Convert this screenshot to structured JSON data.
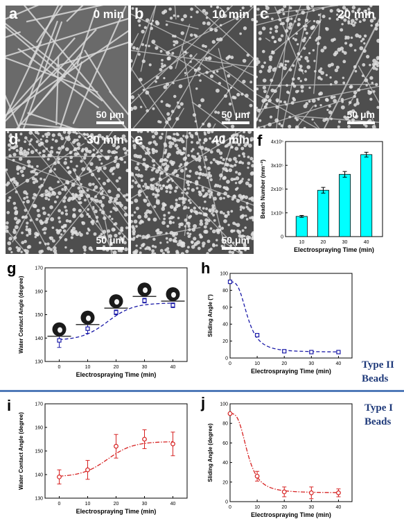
{
  "sem_panels": [
    {
      "letter": "a",
      "time": "0 min",
      "scale": "50 μm"
    },
    {
      "letter": "b",
      "time": "10 min",
      "scale": "50 μm"
    },
    {
      "letter": "c",
      "time": "20 min",
      "scale": "50 μm"
    },
    {
      "letter": "d",
      "time": "30 min",
      "scale": "50 μm"
    },
    {
      "letter": "e",
      "time": "40 min",
      "scale": "50 μm"
    }
  ],
  "panel_letters": {
    "f": "f",
    "g": "g",
    "h": "h",
    "i": "i",
    "j": "j"
  },
  "type_labels": {
    "type2_line1": "Type II",
    "type2_line2": "Beads",
    "type1_line1": "Type I",
    "type1_line2": "Beads"
  },
  "colors": {
    "bar": "#00ffff",
    "blue": "#1a1aa8",
    "red": "#d62020",
    "separator": "#4f79b8"
  },
  "chart_data": [
    {
      "id": "f",
      "type": "bar",
      "categories": [
        "10",
        "20",
        "30",
        "40"
      ],
      "values": [
        85000,
        195000,
        262000,
        345000
      ],
      "errors": [
        4000,
        12000,
        12000,
        10000
      ],
      "ylim": [
        0,
        400000
      ],
      "yticks": [
        {
          "v": 0,
          "label": "0"
        },
        {
          "v": 100000,
          "label": "1x10⁵"
        },
        {
          "v": 200000,
          "label": "2x10⁵"
        },
        {
          "v": 300000,
          "label": "3x10⁵"
        },
        {
          "v": 400000,
          "label": "4x10⁵"
        }
      ],
      "xlabel": "Electrospraying Time (min)",
      "ylabel": "Beads Number (mm⁻²)"
    },
    {
      "id": "g",
      "type": "scatter",
      "x": [
        0,
        10,
        20,
        30,
        40
      ],
      "y": [
        139,
        144,
        151,
        156,
        154
      ],
      "errors": [
        3,
        2,
        1,
        1,
        1
      ],
      "xlim": [
        -5,
        45
      ],
      "ylim": [
        130,
        170
      ],
      "xticks": [
        0,
        10,
        20,
        30,
        40
      ],
      "yticks": [
        130,
        140,
        150,
        160,
        170
      ],
      "xlabel": "Electrospraying Time (min)",
      "ylabel": "Water Contact Angle (degree)"
    },
    {
      "id": "h",
      "type": "scatter",
      "x": [
        0,
        10,
        20,
        30,
        40
      ],
      "y": [
        90,
        27,
        8,
        7,
        7
      ],
      "errors": [
        0,
        2,
        1,
        1,
        1
      ],
      "xlim": [
        0,
        45
      ],
      "ylim": [
        0,
        100
      ],
      "xticks": [
        0,
        10,
        20,
        30,
        40
      ],
      "yticks": [
        0,
        20,
        40,
        60,
        80,
        100
      ],
      "xlabel": "Electrospraying Time (min)",
      "ylabel": "Sliding Angle (°)"
    },
    {
      "id": "i",
      "type": "scatter",
      "x": [
        0,
        10,
        20,
        30,
        40
      ],
      "y": [
        139,
        142,
        152,
        155,
        153
      ],
      "errors": [
        3,
        4,
        5,
        4,
        5
      ],
      "xlim": [
        -5,
        45
      ],
      "ylim": [
        130,
        170
      ],
      "xticks": [
        0,
        10,
        20,
        30,
        40
      ],
      "yticks": [
        130,
        140,
        150,
        160,
        170
      ],
      "xlabel": "Electrospraying Time (min)",
      "ylabel": "Water Contact Angle (degree)"
    },
    {
      "id": "j",
      "type": "scatter",
      "x": [
        0,
        10,
        20,
        30,
        40
      ],
      "y": [
        90,
        26,
        10,
        9,
        9
      ],
      "errors": [
        0,
        5,
        5,
        6,
        4
      ],
      "xlim": [
        0,
        45
      ],
      "ylim": [
        0,
        100
      ],
      "xticks": [
        0,
        10,
        20,
        30,
        40
      ],
      "yticks": [
        0,
        20,
        40,
        60,
        80,
        100
      ],
      "xlabel": "Electrospraying Time (min)",
      "ylabel": "Sliding Angle (degree)"
    }
  ]
}
